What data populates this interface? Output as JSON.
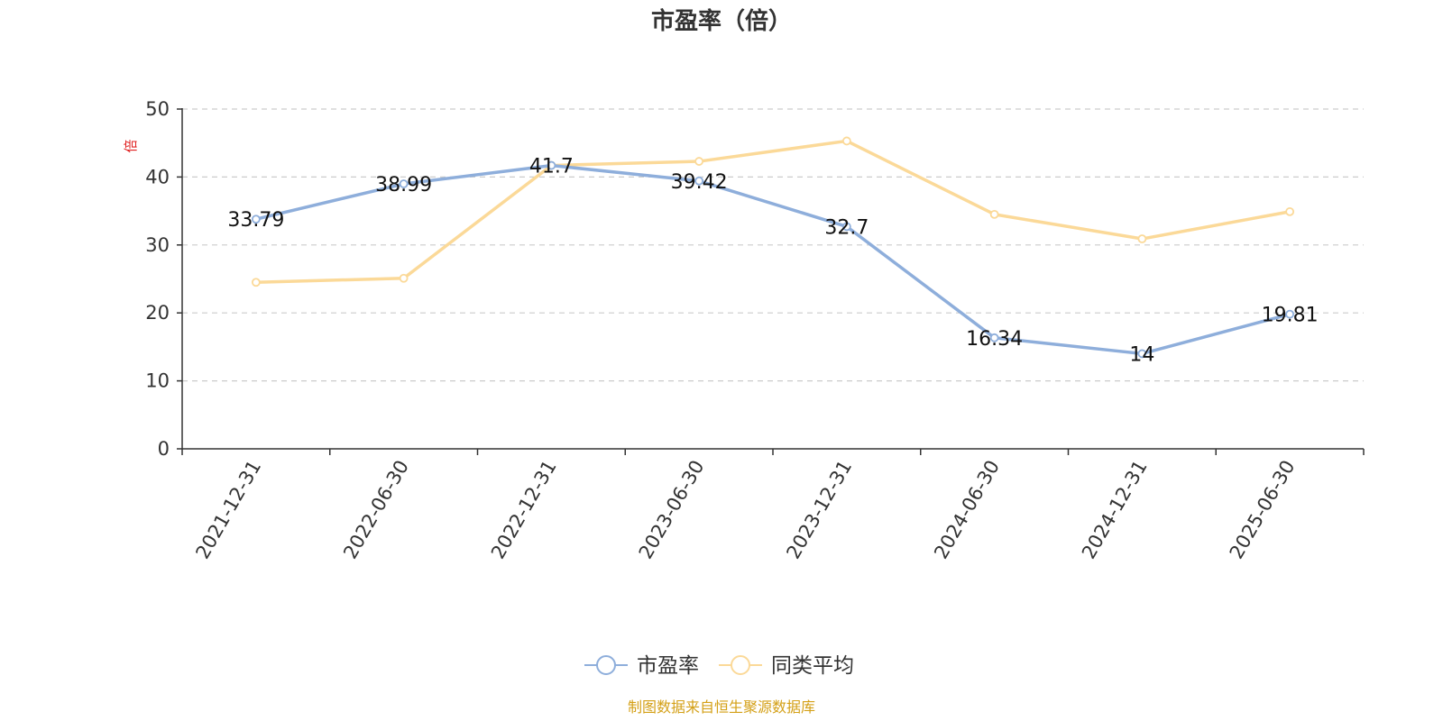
{
  "chart_data": {
    "type": "line",
    "title": "市盈率（倍）",
    "y_unit": "倍",
    "categories": [
      "2021-12-31",
      "2022-06-30",
      "2022-12-31",
      "2023-06-30",
      "2023-12-31",
      "2024-06-30",
      "2024-12-31",
      "2025-06-30"
    ],
    "series": [
      {
        "name": "市盈率",
        "color": "#8eaedb",
        "values": [
          33.79,
          38.99,
          41.7,
          39.42,
          32.7,
          16.34,
          14,
          19.81
        ],
        "labels": [
          "33.79",
          "38.99",
          "41.7",
          "39.42",
          "32.7",
          "16.34",
          "14",
          "19.81"
        ]
      },
      {
        "name": "同类平均",
        "color": "#fbd998",
        "values": [
          24.5,
          25.1,
          41.7,
          42.3,
          45.3,
          34.5,
          30.9,
          34.9
        ]
      }
    ],
    "ylim": [
      0,
      50
    ],
    "yticks": [
      0,
      10,
      20,
      30,
      40,
      50
    ],
    "grid": true,
    "legend_position": "bottom-center"
  },
  "source_text": "制图数据来自恒生聚源数据库",
  "colors": {
    "axis": "#333333",
    "grid": "#cccccc",
    "unit": "#e02020",
    "source": "#d4a017"
  }
}
